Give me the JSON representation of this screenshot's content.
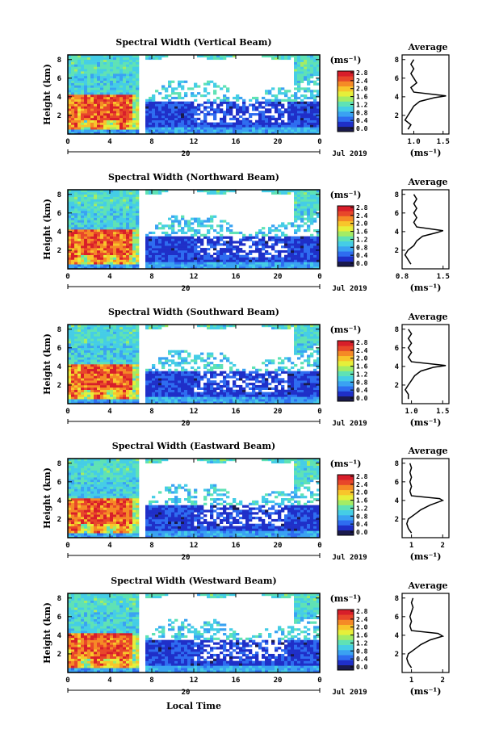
{
  "page": {
    "xlabel": "Local Time"
  },
  "colormap": [
    "#1a1a4d",
    "#1f2fc8",
    "#2e6cf0",
    "#3aa2f2",
    "#45cde6",
    "#5fe2b5",
    "#a4ec64",
    "#e6ef3a",
    "#f8c52b",
    "#f58a26",
    "#e8472a",
    "#d81e2a"
  ],
  "chart_data": [
    {
      "type": "heatmap",
      "title": "Spectral Width (Vertical Beam)",
      "ylabel": "Height (km)",
      "x_ticks": [
        "0",
        "4",
        "8",
        "12",
        "16",
        "20",
        "0"
      ],
      "x_sub_ticks": [
        "20"
      ],
      "x_date": "Jul 2019",
      "y_ticks": [
        "2",
        "4",
        "6",
        "8"
      ],
      "xlim": [
        0,
        24
      ],
      "ylim": [
        0,
        8.5
      ],
      "colorbar": {
        "unit": "(ms⁻¹)",
        "ticks": [
          "0.0",
          "0.4",
          "0.8",
          "1.2",
          "1.6",
          "2.0",
          "2.4",
          "2.8"
        ],
        "range": [
          0,
          2.8
        ]
      },
      "profile": {
        "title": "Average",
        "xlabel": "(ms⁻¹)",
        "x_ticks": [
          "1.0",
          "1.5"
        ],
        "xlim": [
          0.8,
          1.6
        ],
        "y_ticks": [
          "2",
          "4",
          "6",
          "8"
        ],
        "points": [
          [
            0.9,
            0.5
          ],
          [
            0.95,
            1.0
          ],
          [
            0.85,
            1.5
          ],
          [
            0.9,
            2.0
          ],
          [
            0.95,
            2.5
          ],
          [
            1.0,
            3.0
          ],
          [
            1.1,
            3.5
          ],
          [
            1.35,
            3.9
          ],
          [
            1.55,
            4.1
          ],
          [
            1.0,
            4.5
          ],
          [
            0.95,
            5.0
          ],
          [
            1.05,
            5.5
          ],
          [
            1.0,
            6.0
          ],
          [
            0.95,
            6.5
          ],
          [
            1.0,
            7.0
          ],
          [
            0.95,
            7.5
          ],
          [
            1.0,
            8.0
          ]
        ]
      }
    },
    {
      "type": "heatmap",
      "title": "Spectral Width (Northward Beam)",
      "ylabel": "Height (km)",
      "x_ticks": [
        "0",
        "4",
        "8",
        "12",
        "16",
        "20",
        "0"
      ],
      "x_sub_ticks": [
        "20"
      ],
      "x_date": "Jul 2019",
      "y_ticks": [
        "2",
        "4",
        "6",
        "8"
      ],
      "xlim": [
        0,
        24
      ],
      "ylim": [
        0,
        8.5
      ],
      "colorbar": {
        "unit": "(ms⁻¹)",
        "ticks": [
          "0.0",
          "0.4",
          "0.8",
          "1.2",
          "1.6",
          "2.0",
          "2.4",
          "2.8"
        ],
        "range": [
          0,
          2.8
        ]
      },
      "profile": {
        "title": "Average",
        "xlabel": "(ms⁻¹)",
        "x_ticks": [
          "0.8",
          "1.5"
        ],
        "xlim": [
          0.8,
          1.6
        ],
        "y_ticks": [
          "2",
          "4",
          "6",
          "8"
        ],
        "points": [
          [
            0.95,
            0.5
          ],
          [
            0.9,
            1.0
          ],
          [
            0.85,
            1.5
          ],
          [
            0.9,
            2.0
          ],
          [
            1.0,
            2.5
          ],
          [
            1.05,
            3.0
          ],
          [
            1.15,
            3.5
          ],
          [
            1.4,
            3.9
          ],
          [
            1.5,
            4.1
          ],
          [
            1.05,
            4.5
          ],
          [
            1.0,
            5.0
          ],
          [
            1.05,
            5.5
          ],
          [
            1.0,
            6.0
          ],
          [
            1.05,
            6.5
          ],
          [
            1.0,
            7.0
          ],
          [
            1.05,
            7.5
          ],
          [
            1.0,
            8.0
          ]
        ]
      }
    },
    {
      "type": "heatmap",
      "title": "Spectral Width (Southward Beam)",
      "ylabel": "Height (km)",
      "x_ticks": [
        "0",
        "4",
        "8",
        "12",
        "16",
        "20",
        "0"
      ],
      "x_sub_ticks": [
        "20"
      ],
      "x_date": "Jul 2019",
      "y_ticks": [
        "2",
        "4",
        "6",
        "8"
      ],
      "xlim": [
        0,
        24
      ],
      "ylim": [
        0,
        8.5
      ],
      "colorbar": {
        "unit": "(ms⁻¹)",
        "ticks": [
          "0.0",
          "0.4",
          "0.8",
          "1.2",
          "1.6",
          "2.0",
          "2.4",
          "2.8"
        ],
        "range": [
          0,
          2.8
        ]
      },
      "profile": {
        "title": "Average",
        "xlabel": "(ms⁻¹)",
        "x_ticks": [
          "1.0",
          "1.5"
        ],
        "xlim": [
          0.85,
          1.6
        ],
        "y_ticks": [
          "2",
          "4",
          "6",
          "8"
        ],
        "points": [
          [
            0.95,
            0.5
          ],
          [
            0.95,
            1.0
          ],
          [
            0.9,
            1.5
          ],
          [
            0.95,
            2.0
          ],
          [
            1.0,
            2.5
          ],
          [
            1.05,
            3.0
          ],
          [
            1.15,
            3.5
          ],
          [
            1.35,
            3.9
          ],
          [
            1.55,
            4.1
          ],
          [
            1.0,
            4.5
          ],
          [
            0.95,
            5.0
          ],
          [
            1.0,
            5.5
          ],
          [
            0.95,
            6.0
          ],
          [
            1.0,
            6.5
          ],
          [
            0.95,
            7.0
          ],
          [
            1.0,
            7.5
          ],
          [
            0.95,
            8.0
          ]
        ]
      }
    },
    {
      "type": "heatmap",
      "title": "Spectral Width (Eastward Beam)",
      "ylabel": "Height (km)",
      "x_ticks": [
        "0",
        "4",
        "8",
        "12",
        "16",
        "20",
        "0"
      ],
      "x_sub_ticks": [
        "20"
      ],
      "x_date": "Jul 2019",
      "y_ticks": [
        "2",
        "4",
        "6",
        "8"
      ],
      "xlim": [
        0,
        24
      ],
      "ylim": [
        0,
        8.5
      ],
      "colorbar": {
        "unit": "(ms⁻¹)",
        "ticks": [
          "0.0",
          "0.4",
          "0.8",
          "1.2",
          "1.6",
          "2.0",
          "2.4",
          "2.8"
        ],
        "range": [
          0,
          2.8
        ]
      },
      "profile": {
        "title": "Average",
        "xlabel": "(ms⁻¹)",
        "x_ticks": [
          "1",
          "2"
        ],
        "xlim": [
          0.7,
          2.2
        ],
        "y_ticks": [
          "2",
          "4",
          "6",
          "8"
        ],
        "points": [
          [
            1.0,
            0.5
          ],
          [
            0.9,
            1.0
          ],
          [
            0.85,
            1.5
          ],
          [
            0.9,
            2.0
          ],
          [
            1.1,
            2.5
          ],
          [
            1.3,
            3.0
          ],
          [
            1.6,
            3.5
          ],
          [
            2.0,
            4.0
          ],
          [
            1.9,
            4.2
          ],
          [
            1.0,
            4.5
          ],
          [
            0.95,
            5.0
          ],
          [
            1.0,
            5.5
          ],
          [
            0.95,
            6.0
          ],
          [
            1.0,
            6.5
          ],
          [
            0.95,
            7.0
          ],
          [
            1.0,
            7.5
          ],
          [
            0.95,
            8.0
          ]
        ]
      }
    },
    {
      "type": "heatmap",
      "title": "Spectral Width (Westward Beam)",
      "ylabel": "Height (km)",
      "x_ticks": [
        "0",
        "4",
        "8",
        "12",
        "16",
        "20",
        "0"
      ],
      "x_sub_ticks": [
        "20"
      ],
      "x_date": "Jul 2019",
      "y_ticks": [
        "2",
        "4",
        "6",
        "8"
      ],
      "xlim": [
        0,
        24
      ],
      "ylim": [
        0,
        8.5
      ],
      "colorbar": {
        "unit": "(ms⁻¹)",
        "ticks": [
          "0.0",
          "0.4",
          "0.8",
          "1.2",
          "1.6",
          "2.0",
          "2.4",
          "2.8"
        ],
        "range": [
          0,
          2.8
        ]
      },
      "profile": {
        "title": "Average",
        "xlabel": "(ms⁻¹)",
        "x_ticks": [
          "1",
          "2"
        ],
        "xlim": [
          0.7,
          2.2
        ],
        "y_ticks": [
          "2",
          "4",
          "6",
          "8"
        ],
        "points": [
          [
            1.0,
            0.5
          ],
          [
            0.9,
            1.0
          ],
          [
            0.85,
            1.5
          ],
          [
            0.9,
            2.0
          ],
          [
            1.1,
            2.5
          ],
          [
            1.3,
            3.0
          ],
          [
            1.6,
            3.5
          ],
          [
            2.0,
            3.9
          ],
          [
            1.85,
            4.2
          ],
          [
            1.0,
            4.5
          ],
          [
            0.95,
            5.0
          ],
          [
            1.0,
            5.5
          ],
          [
            0.95,
            6.0
          ],
          [
            1.0,
            6.5
          ],
          [
            1.05,
            7.0
          ],
          [
            1.0,
            7.5
          ],
          [
            1.05,
            8.0
          ]
        ]
      }
    }
  ]
}
